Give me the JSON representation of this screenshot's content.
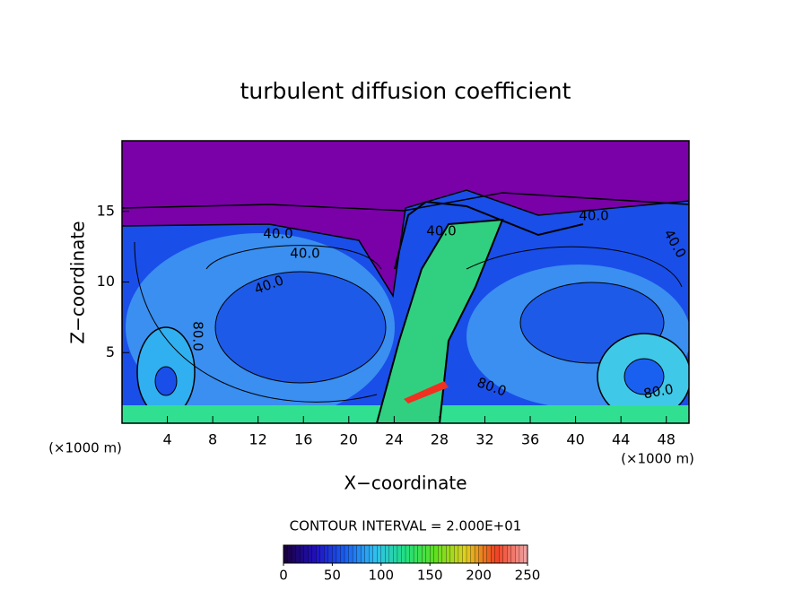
{
  "chart_data": {
    "type": "contour",
    "title": "turbulent diffusion coefficient",
    "x_label": "X−coordinate",
    "y_label": "Z−coordinate",
    "x_unit": "(×1000 m)",
    "y_unit": "(×1000 m)",
    "xlim": [
      0,
      50
    ],
    "xticks": [
      4,
      8,
      12,
      16,
      20,
      24,
      28,
      32,
      36,
      40,
      44,
      48
    ],
    "ylim": [
      0,
      20
    ],
    "yticks": [
      5,
      10,
      15
    ],
    "contour_interval_label": "CONTOUR INTERVAL = 2.000E+01",
    "contour_labels": [
      "40.0",
      "40.0",
      "40.0",
      "40.0",
      "40.0",
      "40.0",
      "80.0",
      "80.0",
      "80.0"
    ],
    "colorbar": {
      "clim": [
        0,
        250
      ],
      "ticks": [
        0,
        50,
        100,
        150,
        200,
        250
      ],
      "colormap": [
        "#1a0040",
        "#2010c0",
        "#1a60f0",
        "#30c0f0",
        "#20e080",
        "#60e020",
        "#e0d020",
        "#f04020",
        "#f0a0a0"
      ]
    }
  }
}
